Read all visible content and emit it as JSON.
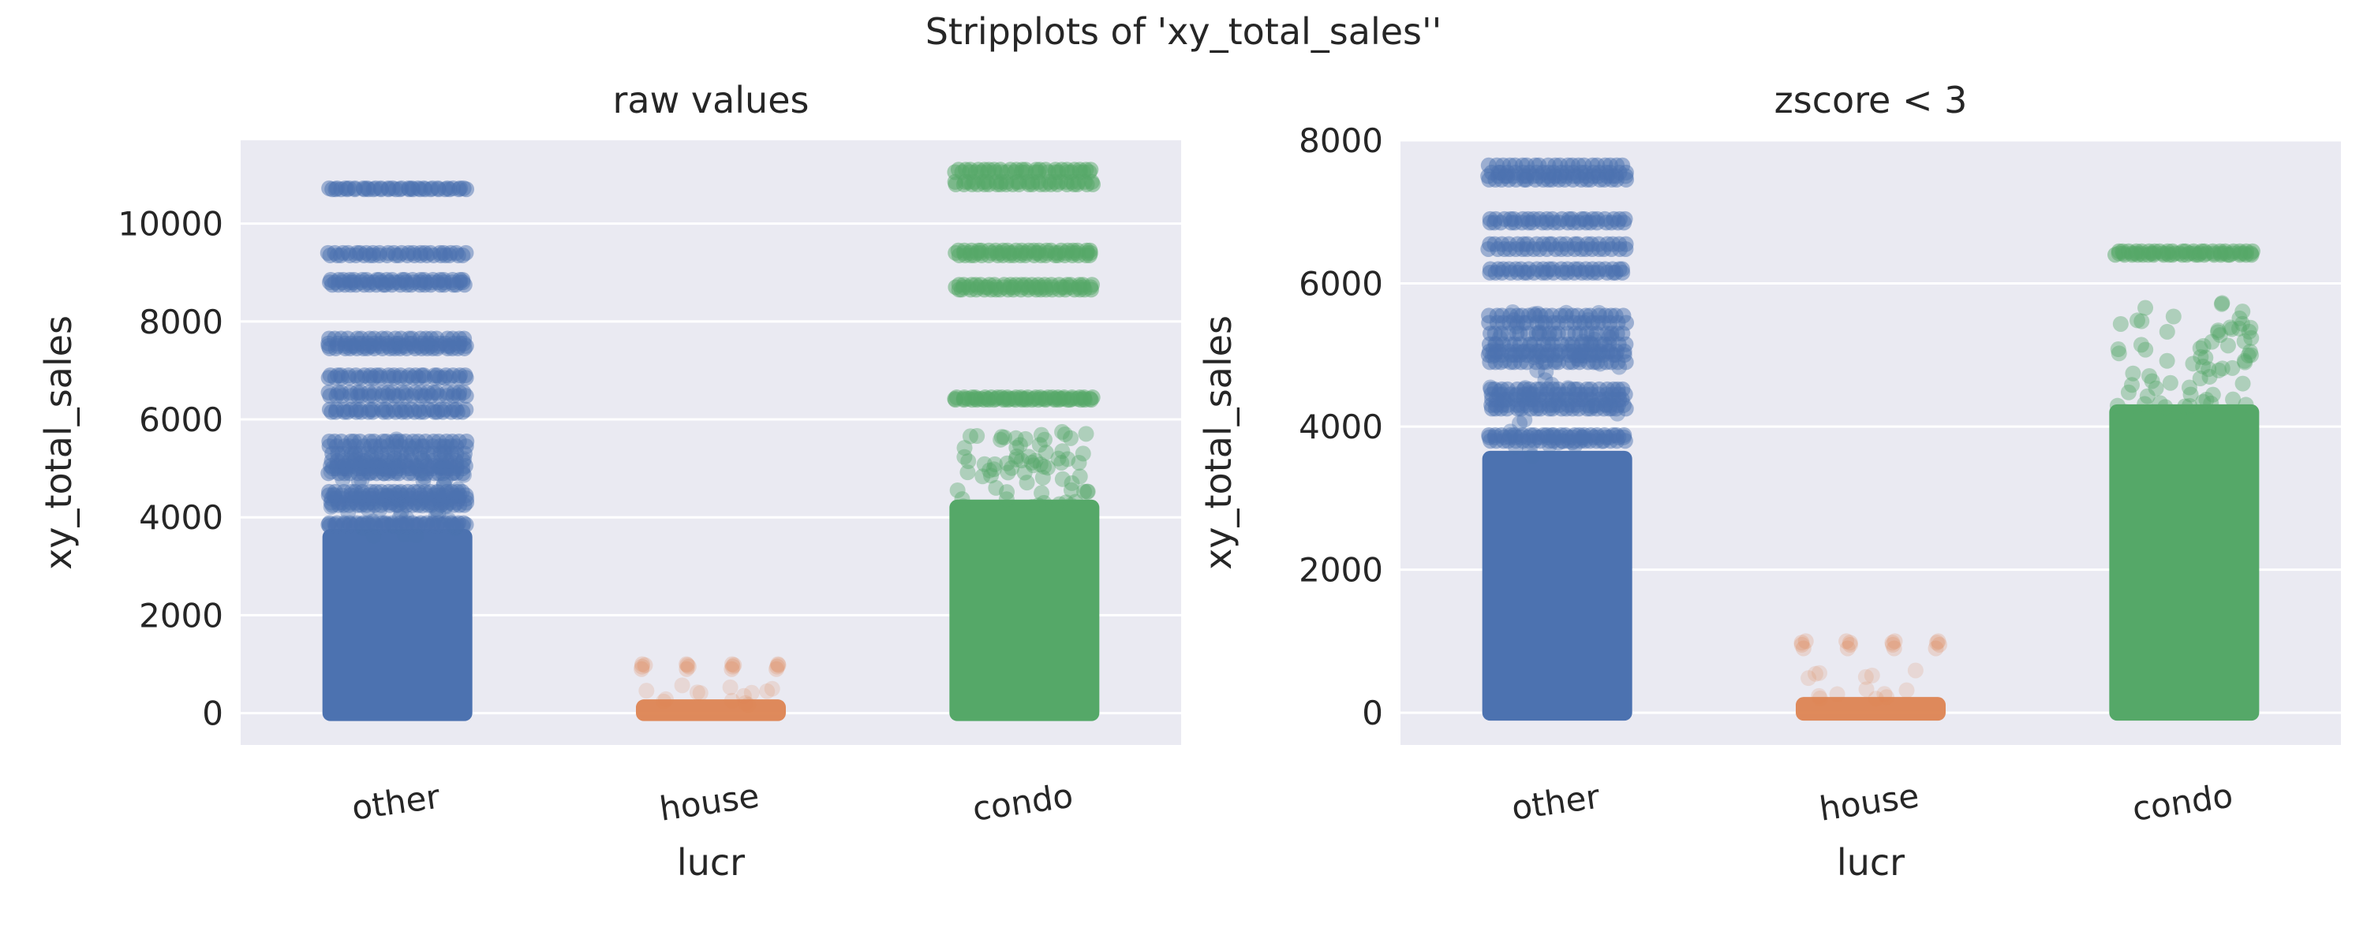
{
  "suptitle": "Stripplots of 'xy_total_sales''",
  "colors": {
    "background": "#ffffff",
    "panel": "#eaeaf2",
    "grid": "#ffffff",
    "text": "#262626",
    "other": "#4c72b0",
    "house": "#dd8452",
    "condo": "#55a868"
  },
  "chart_data": [
    {
      "type": "scatter",
      "subtype": "stripplot",
      "title": "raw values",
      "xlabel": "lucr",
      "ylabel": "xy_total_sales",
      "categories": [
        "other",
        "house",
        "condo"
      ],
      "ylim": [
        -650,
        11700
      ],
      "yticks": [
        0,
        2000,
        4000,
        6000,
        8000,
        10000
      ],
      "grid": true,
      "series": [
        {
          "category": "other",
          "color": "#4c72b0",
          "dense_range": [
            0,
            3600
          ],
          "sparse_range": [
            3600,
            5600
          ],
          "points": [
            3820,
            3850,
            3880,
            4250,
            4300,
            4380,
            4450,
            4520,
            4900,
            5000,
            5050,
            5150,
            5300,
            5450,
            5550,
            6150,
            6200,
            6480,
            6550,
            6850,
            6900,
            7450,
            7500,
            7550,
            7650,
            8750,
            8800,
            8850,
            9350,
            9400,
            10700,
            10720
          ]
        },
        {
          "category": "house",
          "color": "#dd8452",
          "dense_range": [
            0,
            120
          ],
          "sparse_range": [
            150,
            600
          ],
          "points": [
            900,
            950,
            980,
            1000
          ]
        },
        {
          "category": "condo",
          "color": "#55a868",
          "dense_range": [
            0,
            4200
          ],
          "sparse_range": [
            4200,
            5750
          ],
          "points": [
            6400,
            6420,
            6450,
            8650,
            8700,
            8750,
            9350,
            9400,
            9450,
            10800,
            10850,
            11050,
            11100
          ]
        }
      ]
    },
    {
      "type": "scatter",
      "subtype": "stripplot",
      "title": "zscore < 3",
      "xlabel": "lucr",
      "ylabel": "xy_total_sales",
      "categories": [
        "other",
        "house",
        "condo"
      ],
      "ylim": [
        -450,
        8000
      ],
      "yticks": [
        0,
        2000,
        4000,
        6000,
        8000
      ],
      "grid": true,
      "series": [
        {
          "category": "other",
          "color": "#4c72b0",
          "dense_range": [
            0,
            3550
          ],
          "sparse_range": [
            3550,
            5600
          ],
          "points": [
            3800,
            3850,
            3880,
            4250,
            4300,
            4380,
            4450,
            4520,
            4900,
            5000,
            5050,
            5150,
            5300,
            5450,
            5550,
            6150,
            6200,
            6480,
            6550,
            6850,
            6900,
            7450,
            7500,
            7550,
            7650
          ]
        },
        {
          "category": "house",
          "color": "#dd8452",
          "dense_range": [
            0,
            110
          ],
          "sparse_range": [
            150,
            600
          ],
          "points": [
            900,
            950,
            980,
            1000
          ]
        },
        {
          "category": "condo",
          "color": "#55a868",
          "dense_range": [
            0,
            4200
          ],
          "sparse_range": [
            4200,
            5750
          ],
          "points": [
            6400,
            6420,
            6450
          ]
        }
      ]
    }
  ]
}
